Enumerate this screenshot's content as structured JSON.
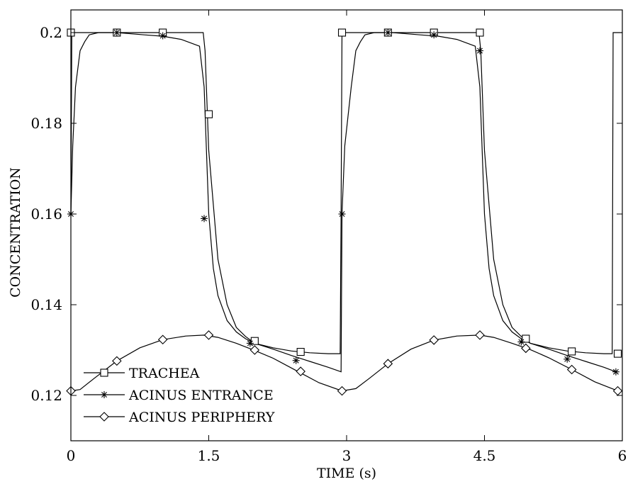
{
  "chart_data": {
    "type": "line",
    "xlabel": "TIME (s)",
    "ylabel": "CONCENTRATION",
    "xlim": [
      0,
      6
    ],
    "ylim": [
      0.11,
      0.205
    ],
    "xticks": [
      0,
      1.5,
      3,
      4.5,
      6
    ],
    "xtick_labels": [
      "0",
      "1.5",
      "3",
      "4.5",
      "6"
    ],
    "yticks": [
      0.12,
      0.14,
      0.16,
      0.18,
      0.2
    ],
    "ytick_labels": [
      "0.12",
      "0.14",
      "0.16",
      "0.18",
      "0.2"
    ],
    "grid": false,
    "legend_position": "bottom-left",
    "series": [
      {
        "name": "TRACHEA",
        "marker": "square",
        "x": [
          0,
          0.01,
          1.44,
          1.46,
          1.5,
          1.6,
          1.7,
          1.8,
          1.9,
          2.0,
          2.2,
          2.4,
          2.6,
          2.8,
          2.93,
          2.94,
          2.95,
          4.44,
          4.46,
          4.5,
          4.6,
          4.7,
          4.8,
          4.9,
          5.0,
          5.2,
          5.4,
          5.6,
          5.8,
          5.89,
          5.9,
          5.92,
          6.0
        ],
        "y": [
          0.16,
          0.2,
          0.2,
          0.196,
          0.174,
          0.15,
          0.14,
          0.135,
          0.133,
          0.1315,
          0.1305,
          0.1298,
          0.1294,
          0.1292,
          0.1292,
          0.16,
          0.2,
          0.2,
          0.196,
          0.174,
          0.15,
          0.14,
          0.135,
          0.133,
          0.1315,
          0.1305,
          0.1298,
          0.1294,
          0.1292,
          0.1292,
          0.2,
          0.2,
          0.2
        ],
        "markers_x": [
          0,
          0.5,
          1.0,
          1.5,
          2.0,
          2.5,
          2.95,
          3.45,
          3.95,
          4.45,
          4.95,
          5.45,
          5.95
        ],
        "markers_y": [
          0.2,
          0.2,
          0.2,
          0.182,
          0.132,
          0.1296,
          0.2,
          0.2,
          0.2,
          0.2,
          0.1325,
          0.1297,
          0.1292
        ]
      },
      {
        "name": "ACINUS ENTRANCE",
        "marker": "star",
        "x": [
          0,
          0.02,
          0.05,
          0.1,
          0.15,
          0.2,
          0.3,
          0.5,
          0.8,
          1.0,
          1.2,
          1.4,
          1.45,
          1.5,
          1.55,
          1.6,
          1.7,
          1.8,
          1.9,
          2.0,
          2.2,
          2.4,
          2.6,
          2.8,
          2.94,
          2.95,
          2.98,
          3.05,
          3.1,
          3.15,
          3.2,
          3.3,
          3.5,
          3.8,
          4.0,
          4.2,
          4.4,
          4.45,
          4.5,
          4.55,
          4.6,
          4.7,
          4.8,
          4.9,
          5.0,
          5.2,
          5.4,
          5.6,
          5.8,
          5.93
        ],
        "y": [
          0.16,
          0.175,
          0.188,
          0.196,
          0.198,
          0.1995,
          0.2,
          0.2,
          0.1995,
          0.1992,
          0.1985,
          0.197,
          0.188,
          0.16,
          0.148,
          0.142,
          0.1365,
          0.134,
          0.1325,
          0.1315,
          0.1302,
          0.1288,
          0.1275,
          0.1262,
          0.1252,
          0.16,
          0.175,
          0.188,
          0.196,
          0.198,
          0.1995,
          0.2,
          0.2,
          0.1995,
          0.1992,
          0.1985,
          0.197,
          0.188,
          0.16,
          0.148,
          0.142,
          0.1365,
          0.134,
          0.1325,
          0.1315,
          0.1302,
          0.1288,
          0.1275,
          0.1262,
          0.1252
        ],
        "markers_x": [
          0,
          0.5,
          1.0,
          1.45,
          1.95,
          2.45,
          2.95,
          3.45,
          3.95,
          4.45,
          4.9,
          5.4,
          5.93
        ],
        "markers_y": [
          0.16,
          0.2,
          0.1993,
          0.159,
          0.1315,
          0.1277,
          0.16,
          0.2,
          0.1995,
          0.196,
          0.1318,
          0.128,
          0.1252
        ]
      },
      {
        "name": "ACINUS PERIPHERY",
        "marker": "diamond",
        "x": [
          0,
          0.1,
          0.25,
          0.5,
          0.75,
          1.0,
          1.25,
          1.45,
          1.6,
          1.8,
          2.0,
          2.2,
          2.45,
          2.7,
          2.95,
          3.1,
          3.25,
          3.45,
          3.7,
          3.95,
          4.2,
          4.45,
          4.6,
          4.8,
          5.0,
          5.2,
          5.45,
          5.7,
          5.95
        ],
        "y": [
          0.121,
          0.1213,
          0.1237,
          0.1276,
          0.1305,
          0.1323,
          0.1331,
          0.1333,
          0.1328,
          0.1315,
          0.1299,
          0.1282,
          0.1255,
          0.1228,
          0.121,
          0.1215,
          0.1238,
          0.127,
          0.1302,
          0.1322,
          0.1331,
          0.1333,
          0.1328,
          0.1315,
          0.1301,
          0.1283,
          0.1257,
          0.123,
          0.121
        ],
        "markers_x": [
          0,
          0.5,
          1.0,
          1.5,
          2.0,
          2.5,
          2.95,
          3.45,
          3.95,
          4.45,
          4.95,
          5.45,
          5.95
        ],
        "markers_y": [
          0.121,
          0.1276,
          0.1323,
          0.1333,
          0.13,
          0.1253,
          0.121,
          0.127,
          0.1322,
          0.1333,
          0.1304,
          0.1257,
          0.121
        ]
      }
    ]
  }
}
